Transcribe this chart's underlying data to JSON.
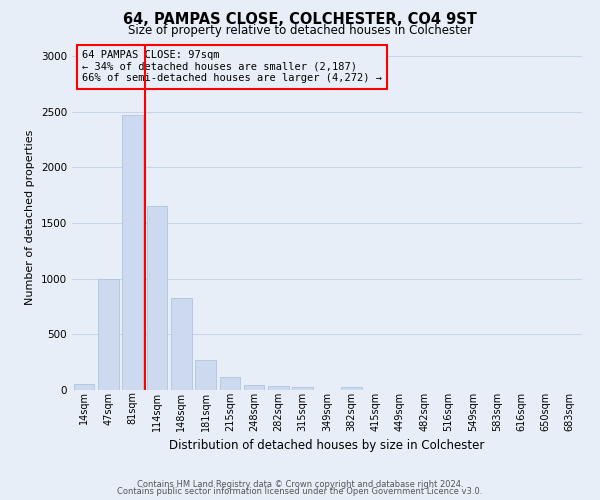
{
  "title": "64, PAMPAS CLOSE, COLCHESTER, CO4 9ST",
  "subtitle": "Size of property relative to detached houses in Colchester",
  "xlabel": "Distribution of detached houses by size in Colchester",
  "ylabel": "Number of detached properties",
  "bar_labels": [
    "14sqm",
    "47sqm",
    "81sqm",
    "114sqm",
    "148sqm",
    "181sqm",
    "215sqm",
    "248sqm",
    "282sqm",
    "315sqm",
    "349sqm",
    "382sqm",
    "415sqm",
    "449sqm",
    "482sqm",
    "516sqm",
    "549sqm",
    "583sqm",
    "616sqm",
    "650sqm",
    "683sqm"
  ],
  "bar_values": [
    55,
    1000,
    2470,
    1650,
    830,
    270,
    120,
    45,
    40,
    30,
    0,
    25,
    0,
    0,
    0,
    0,
    0,
    0,
    0,
    0,
    0
  ],
  "bar_color": "#ccd9ee",
  "bar_edgecolor": "#afc4e0",
  "grid_color": "#c8d4e8",
  "background_color": "#e8eef8",
  "vline_color": "red",
  "annotation_title": "64 PAMPAS CLOSE: 97sqm",
  "annotation_line1": "← 34% of detached houses are smaller (2,187)",
  "annotation_line2": "66% of semi-detached houses are larger (4,272) →",
  "annotation_box_color": "red",
  "ylim": [
    0,
    3100
  ],
  "yticks": [
    0,
    500,
    1000,
    1500,
    2000,
    2500,
    3000
  ],
  "footer_line1": "Contains HM Land Registry data © Crown copyright and database right 2024.",
  "footer_line2": "Contains public sector information licensed under the Open Government Licence v3.0.",
  "title_fontsize": 10.5,
  "subtitle_fontsize": 8.5,
  "ylabel_fontsize": 8,
  "xlabel_fontsize": 8.5,
  "tick_fontsize": 7,
  "footer_fontsize": 6,
  "annot_fontsize": 7.5
}
